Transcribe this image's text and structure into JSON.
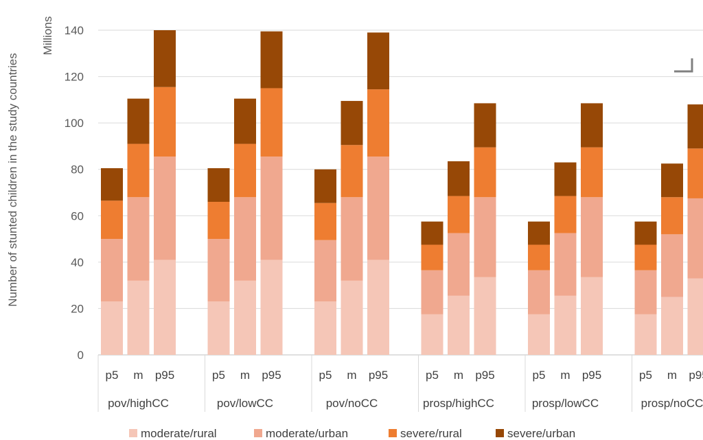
{
  "chart_data": {
    "type": "bar",
    "stacked": true,
    "ylabel": "Number of stunted children in the study countries",
    "yunits": "Millions",
    "ylim": [
      0,
      140
    ],
    "yticks": [
      0,
      20,
      40,
      60,
      80,
      100,
      120,
      140
    ],
    "grid": true,
    "legend_position": "bottom",
    "groups": [
      "pov/highCC",
      "pov/lowCC",
      "pov/noCC",
      "prosp/highCC",
      "prosp/lowCC",
      "prosp/noCC"
    ],
    "groups_shown": [
      "pov/highCC",
      "pov/lowCC",
      "pov/noCC",
      "prosp/highCC",
      "prosp/lowCC",
      "prosp/noCC"
    ],
    "categories": [
      "p5",
      "m",
      "p95"
    ],
    "series": [
      {
        "name": "moderate/rural",
        "color": "#f5c6b7",
        "values": [
          [
            23,
            32,
            41
          ],
          [
            23,
            32,
            41
          ],
          [
            23,
            32,
            41
          ],
          [
            17.5,
            25.5,
            33.5
          ],
          [
            17.5,
            25.5,
            33.5
          ],
          [
            17.5,
            25,
            33
          ]
        ]
      },
      {
        "name": "moderate/urban",
        "color": "#f0a88f",
        "values": [
          [
            27,
            36,
            44.5
          ],
          [
            27,
            36,
            44.5
          ],
          [
            26.5,
            36,
            44.5
          ],
          [
            19,
            27,
            34.5
          ],
          [
            19,
            27,
            34.5
          ],
          [
            19,
            27,
            34.5
          ]
        ]
      },
      {
        "name": "severe/rural",
        "color": "#ee7d31",
        "values": [
          [
            16.5,
            23,
            30
          ],
          [
            16,
            23,
            29.5
          ],
          [
            16,
            22.5,
            29
          ],
          [
            11,
            16,
            21.5
          ],
          [
            11,
            16,
            21.5
          ],
          [
            11,
            16,
            21.5
          ]
        ]
      },
      {
        "name": "severe/urban",
        "color": "#974806",
        "values": [
          [
            14,
            19.5,
            24.5
          ],
          [
            14.5,
            19.5,
            24.5
          ],
          [
            14.5,
            19,
            24.5
          ],
          [
            10,
            15,
            19
          ],
          [
            10,
            14.5,
            19
          ],
          [
            10,
            14.5,
            19
          ]
        ]
      }
    ]
  }
}
